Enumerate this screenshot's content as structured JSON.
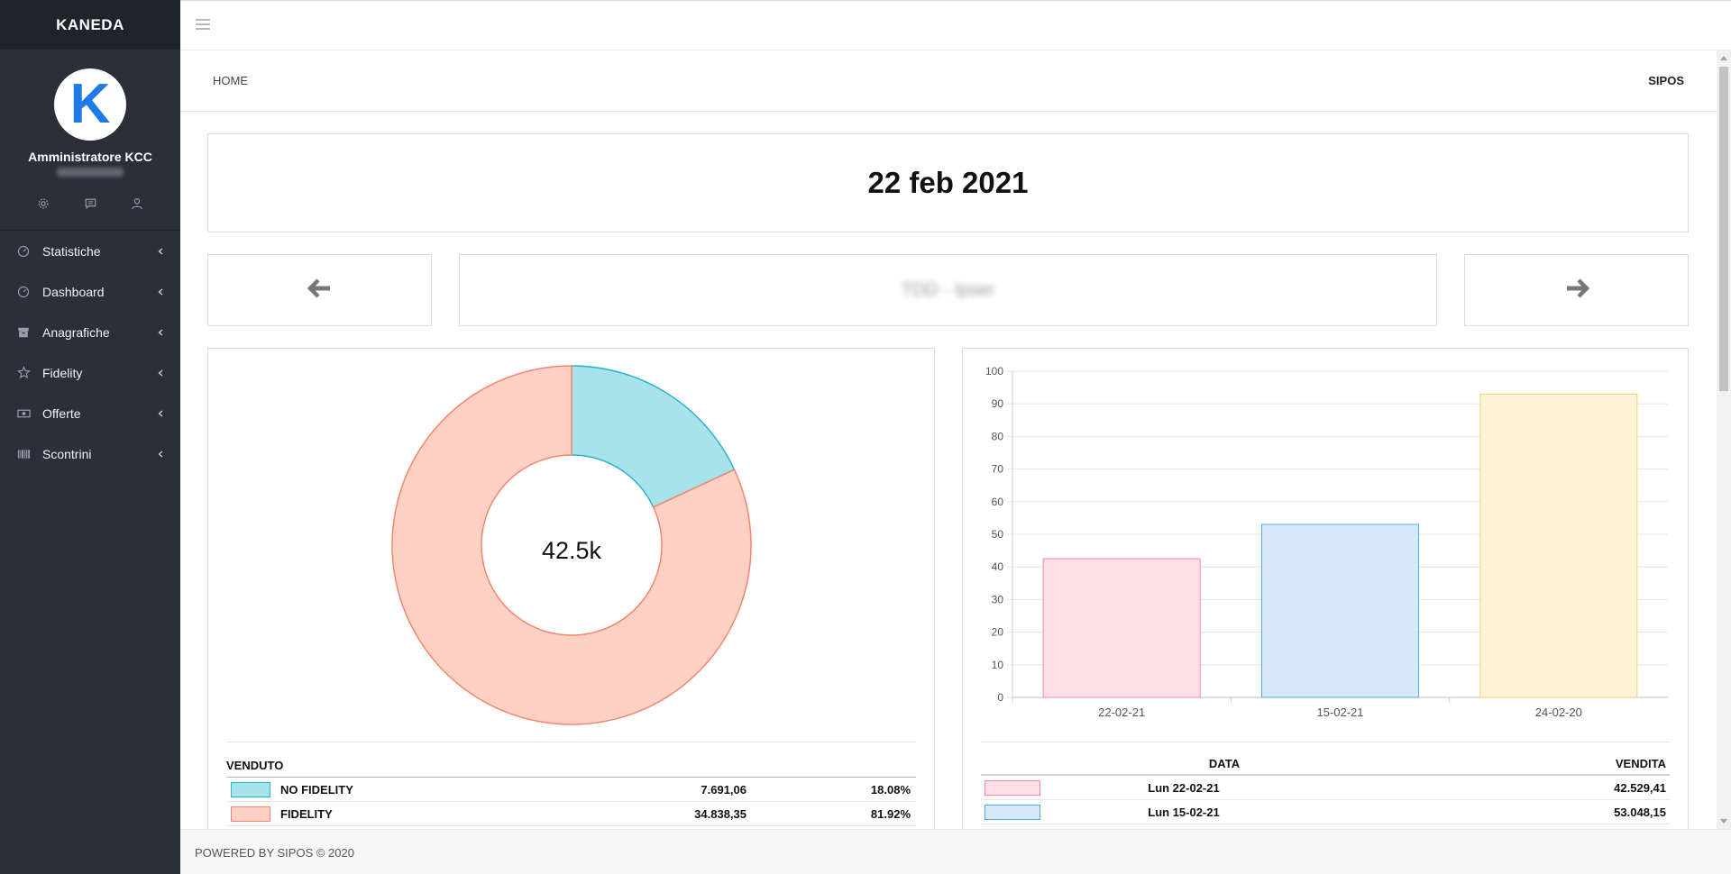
{
  "app": {
    "brand": "KANEDA"
  },
  "profile": {
    "avatar_letter": "K",
    "name": "Amministratore KCC",
    "icons": [
      "gear-icon",
      "comment-icon",
      "user-icon"
    ]
  },
  "sidebar": {
    "items": [
      {
        "label": "Statistiche",
        "icon": "gauge-icon"
      },
      {
        "label": "Dashboard",
        "icon": "gauge-icon"
      },
      {
        "label": "Anagrafiche",
        "icon": "archive-icon"
      },
      {
        "label": "Fidelity",
        "icon": "star-icon"
      },
      {
        "label": "Offerte",
        "icon": "money-icon"
      },
      {
        "label": "Scontrini",
        "icon": "barcode-icon"
      }
    ]
  },
  "breadcrumb": {
    "home": "HOME",
    "right": "SIPOS"
  },
  "main": {
    "date_title": "22 feb 2021",
    "nav_center": "TDD - Ipser"
  },
  "chart_data": [
    {
      "type": "pie",
      "title": "",
      "center_label": "42.5k",
      "labels": [
        "NO FIDELITY",
        "FIDELITY"
      ],
      "values": [
        7691.06,
        34838.35
      ],
      "colors": {
        "NO FIDELITY": {
          "fill": "#a8e2ea",
          "stroke": "#2bb5c8"
        },
        "FIDELITY": {
          "fill": "#ffd0c4",
          "stroke": "#f4866b"
        }
      }
    },
    {
      "type": "bar",
      "title": "",
      "categories": [
        "22-02-21",
        "15-02-21",
        "24-02-20"
      ],
      "values": [
        42.53,
        53.05,
        93
      ],
      "ylim": [
        0,
        100
      ],
      "yticks": [
        "0",
        "10",
        "20",
        "30",
        "40",
        "50",
        "60",
        "70",
        "80",
        "90",
        "100"
      ],
      "grid": true,
      "colors": [
        {
          "fill": "#ffdfe5",
          "stroke": "#f48aa2"
        },
        {
          "fill": "#d5e9f8",
          "stroke": "#5aa9e6"
        },
        {
          "fill": "#fff4d9",
          "stroke": "#f7cf6a"
        }
      ]
    }
  ],
  "legend": {
    "header": "VENDUTO",
    "rows": [
      {
        "name": "NO FIDELITY",
        "value": "7.691,06",
        "pct": "18.08%"
      },
      {
        "name": "FIDELITY",
        "value": "34.838,35",
        "pct": "81.92%"
      }
    ]
  },
  "sales_table": {
    "col_date": "DATA",
    "col_sales": "VENDITA",
    "rows": [
      {
        "date": "Lun 22-02-21",
        "value": "42.529,41"
      },
      {
        "date": "Lun 15-02-21",
        "value": "53.048,15"
      }
    ]
  },
  "footer": {
    "text": "POWERED BY SIPOS © 2020"
  }
}
